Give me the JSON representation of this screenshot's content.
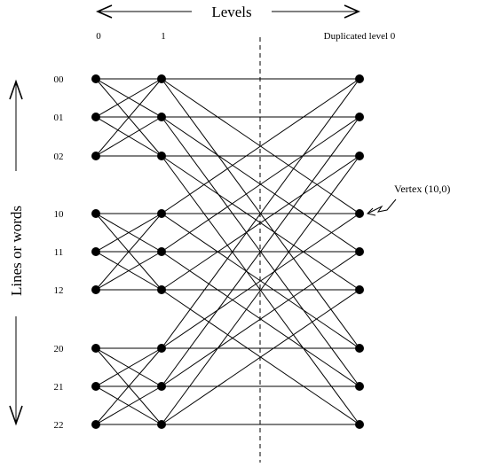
{
  "header": {
    "levels_label": "Levels",
    "level_labels": [
      "0",
      "1"
    ],
    "duplicated_label": "Duplicated level 0"
  },
  "side_label": "Lines or words",
  "rows": [
    "00",
    "01",
    "02",
    "10",
    "11",
    "12",
    "20",
    "21",
    "22"
  ],
  "callout": {
    "text": "Vertex (10,0)"
  },
  "graph": {
    "columns": [
      "level-0",
      "level-1",
      "duplicated-level-0"
    ],
    "edges_level0_to_level1": [
      [
        "00",
        "00"
      ],
      [
        "00",
        "01"
      ],
      [
        "00",
        "02"
      ],
      [
        "01",
        "00"
      ],
      [
        "01",
        "01"
      ],
      [
        "01",
        "02"
      ],
      [
        "02",
        "00"
      ],
      [
        "02",
        "01"
      ],
      [
        "02",
        "02"
      ],
      [
        "10",
        "10"
      ],
      [
        "10",
        "11"
      ],
      [
        "10",
        "12"
      ],
      [
        "11",
        "10"
      ],
      [
        "11",
        "11"
      ],
      [
        "11",
        "12"
      ],
      [
        "12",
        "10"
      ],
      [
        "12",
        "11"
      ],
      [
        "12",
        "12"
      ],
      [
        "20",
        "20"
      ],
      [
        "20",
        "21"
      ],
      [
        "20",
        "22"
      ],
      [
        "21",
        "20"
      ],
      [
        "21",
        "21"
      ],
      [
        "21",
        "22"
      ],
      [
        "22",
        "20"
      ],
      [
        "22",
        "21"
      ],
      [
        "22",
        "22"
      ]
    ],
    "edges_level1_to_duplicated": [
      [
        "00",
        "00"
      ],
      [
        "00",
        "10"
      ],
      [
        "00",
        "20"
      ],
      [
        "01",
        "01"
      ],
      [
        "01",
        "11"
      ],
      [
        "01",
        "21"
      ],
      [
        "02",
        "02"
      ],
      [
        "02",
        "12"
      ],
      [
        "02",
        "22"
      ],
      [
        "10",
        "00"
      ],
      [
        "10",
        "10"
      ],
      [
        "10",
        "20"
      ],
      [
        "11",
        "01"
      ],
      [
        "11",
        "11"
      ],
      [
        "11",
        "21"
      ],
      [
        "12",
        "02"
      ],
      [
        "12",
        "12"
      ],
      [
        "12",
        "22"
      ],
      [
        "20",
        "00"
      ],
      [
        "20",
        "10"
      ],
      [
        "20",
        "20"
      ],
      [
        "21",
        "01"
      ],
      [
        "21",
        "11"
      ],
      [
        "21",
        "21"
      ],
      [
        "22",
        "02"
      ],
      [
        "22",
        "12"
      ],
      [
        "22",
        "22"
      ]
    ]
  }
}
